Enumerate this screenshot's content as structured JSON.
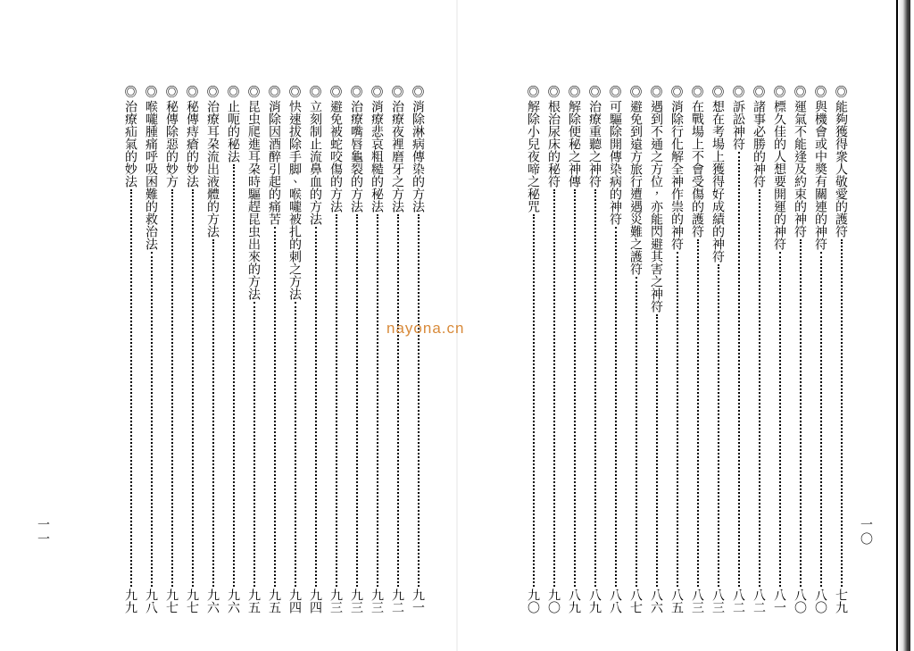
{
  "watermark": {
    "text": "nayona.cn",
    "color": "#d88a3a"
  },
  "page_right": {
    "folio": "一〇",
    "entries": [
      {
        "title": "能夠獲得衆人敬愛的護符",
        "page": "七九"
      },
      {
        "title": "與機會或中奬有關連的神符",
        "page": "八〇"
      },
      {
        "title": "運氣不能逢及約束的神符",
        "page": "八〇"
      },
      {
        "title": "標久佳的人想要開運的神符",
        "page": "八一"
      },
      {
        "title": "諸事必勝的神符",
        "page": "八二"
      },
      {
        "title": "訴訟神符",
        "page": "八二"
      },
      {
        "title": "想在考場上獲得好成績的神符",
        "page": "八三"
      },
      {
        "title": "在戰場上不會受傷的護符",
        "page": "八三"
      },
      {
        "title": "消除行化解全神作祟的神符",
        "page": "八五"
      },
      {
        "title": "遇到不通之方位，亦能閃避其害之神符",
        "page": "八六"
      },
      {
        "title": "避免到遠方旅行遭遇災難之護符",
        "page": "八七"
      },
      {
        "title": "可驅除開傳染病的神符",
        "page": "八八"
      },
      {
        "title": "治療重聽之神符",
        "page": "八九"
      },
      {
        "title": "解除便秘之神傳",
        "page": "八九"
      },
      {
        "title": "根治尿床的秘符",
        "page": "九〇"
      },
      {
        "title": "解除小兒夜啼之秘咒",
        "page": "九〇"
      }
    ]
  },
  "page_left": {
    "folio": "一一",
    "entries": [
      {
        "title": "消除淋病傳染的方法",
        "page": "九一"
      },
      {
        "title": "治療夜裡磨牙之方法",
        "page": "九二"
      },
      {
        "title": "消療悲哀粗糙的秘法",
        "page": "九三"
      },
      {
        "title": "治療嘴唇龜裂的方法",
        "page": "九三"
      },
      {
        "title": "避免被蛇咬傷的方法",
        "page": "九三"
      },
      {
        "title": "立刻制止流鼻血的方法",
        "page": "九四"
      },
      {
        "title": "快速拔除手脚、喉嚨被扎的刺之方法",
        "page": "九四"
      },
      {
        "title": "消除因酒醉引起的痛苦",
        "page": "九五"
      },
      {
        "title": "昆虫爬進耳朶時驅趕昆虫出來的方法",
        "page": "九五"
      },
      {
        "title": "止呃的秘法",
        "page": "九六"
      },
      {
        "title": "治療耳朶流出液體的方法",
        "page": "九六"
      },
      {
        "title": "秘傳痔瘡的妙法",
        "page": "九七"
      },
      {
        "title": "秘傳除惡的妙方",
        "page": "九七"
      },
      {
        "title": "喉嚨腫痛呼吸困難的救治法",
        "page": "九八"
      },
      {
        "title": "治療疝氣的妙法",
        "page": "九九"
      }
    ]
  },
  "style": {
    "bullet": "◎",
    "text_color": "#000000",
    "bg_color": "#ffffff",
    "font_size_pt": 10.5
  }
}
